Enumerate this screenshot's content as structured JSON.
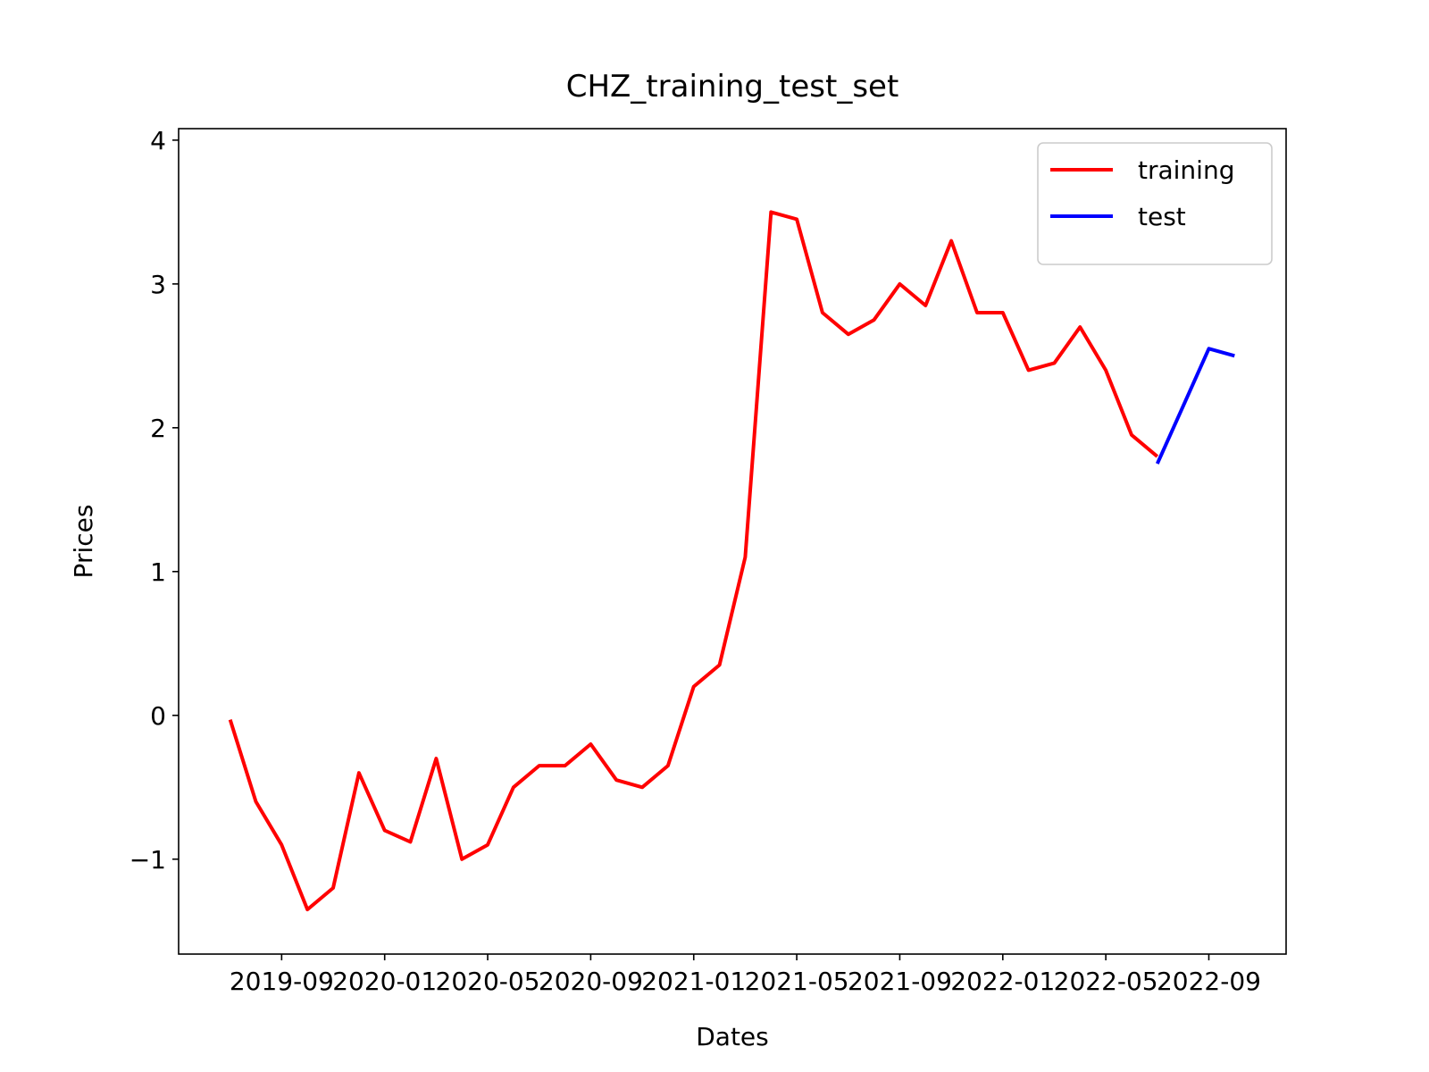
{
  "chart_data": {
    "type": "line",
    "title": "CHZ_training_test_set",
    "x_label": "Dates",
    "y_label": "Prices",
    "series": [
      {
        "name": "training",
        "color": "#ff0000",
        "x": [
          "2019-07",
          "2019-08",
          "2019-09",
          "2019-10",
          "2019-11",
          "2019-12",
          "2020-01",
          "2020-02",
          "2020-03",
          "2020-04",
          "2020-05",
          "2020-06",
          "2020-07",
          "2020-08",
          "2020-09",
          "2020-10",
          "2020-11",
          "2020-12",
          "2021-01",
          "2021-02",
          "2021-03",
          "2021-04",
          "2021-05",
          "2021-06",
          "2021-07",
          "2021-08",
          "2021-09",
          "2021-10",
          "2021-11",
          "2021-12",
          "2022-01",
          "2022-02",
          "2022-03",
          "2022-04",
          "2022-05",
          "2022-06",
          "2022-07"
        ],
        "values": [
          -0.03,
          -0.6,
          -0.9,
          -1.35,
          -1.2,
          -0.4,
          -0.8,
          -0.88,
          -0.3,
          -1.0,
          -0.9,
          -0.5,
          -0.35,
          -0.35,
          -0.2,
          -0.45,
          -0.5,
          -0.35,
          0.2,
          0.35,
          1.1,
          3.5,
          3.45,
          2.8,
          2.65,
          2.75,
          3.0,
          2.85,
          3.3,
          2.8,
          2.8,
          2.4,
          2.45,
          2.7,
          2.4,
          1.95,
          1.8
        ]
      },
      {
        "name": "test",
        "color": "#0000ff",
        "x": [
          "2022-07",
          "2022-08",
          "2022-09",
          "2022-10"
        ],
        "values": [
          1.75,
          2.15,
          2.55,
          2.5
        ]
      }
    ],
    "xlim": [
      "2019-05",
      "2022-12"
    ],
    "xticks": [
      "2019-09",
      "2020-01",
      "2020-05",
      "2020-09",
      "2021-01",
      "2021-05",
      "2021-09",
      "2022-01",
      "2022-05",
      "2022-09"
    ],
    "ylim": [
      -1.66,
      4.08
    ],
    "yticks": [
      {
        "value": -1,
        "label": "−1"
      },
      0,
      1,
      2,
      3,
      4
    ],
    "legend": "upper right",
    "grid": false
  }
}
